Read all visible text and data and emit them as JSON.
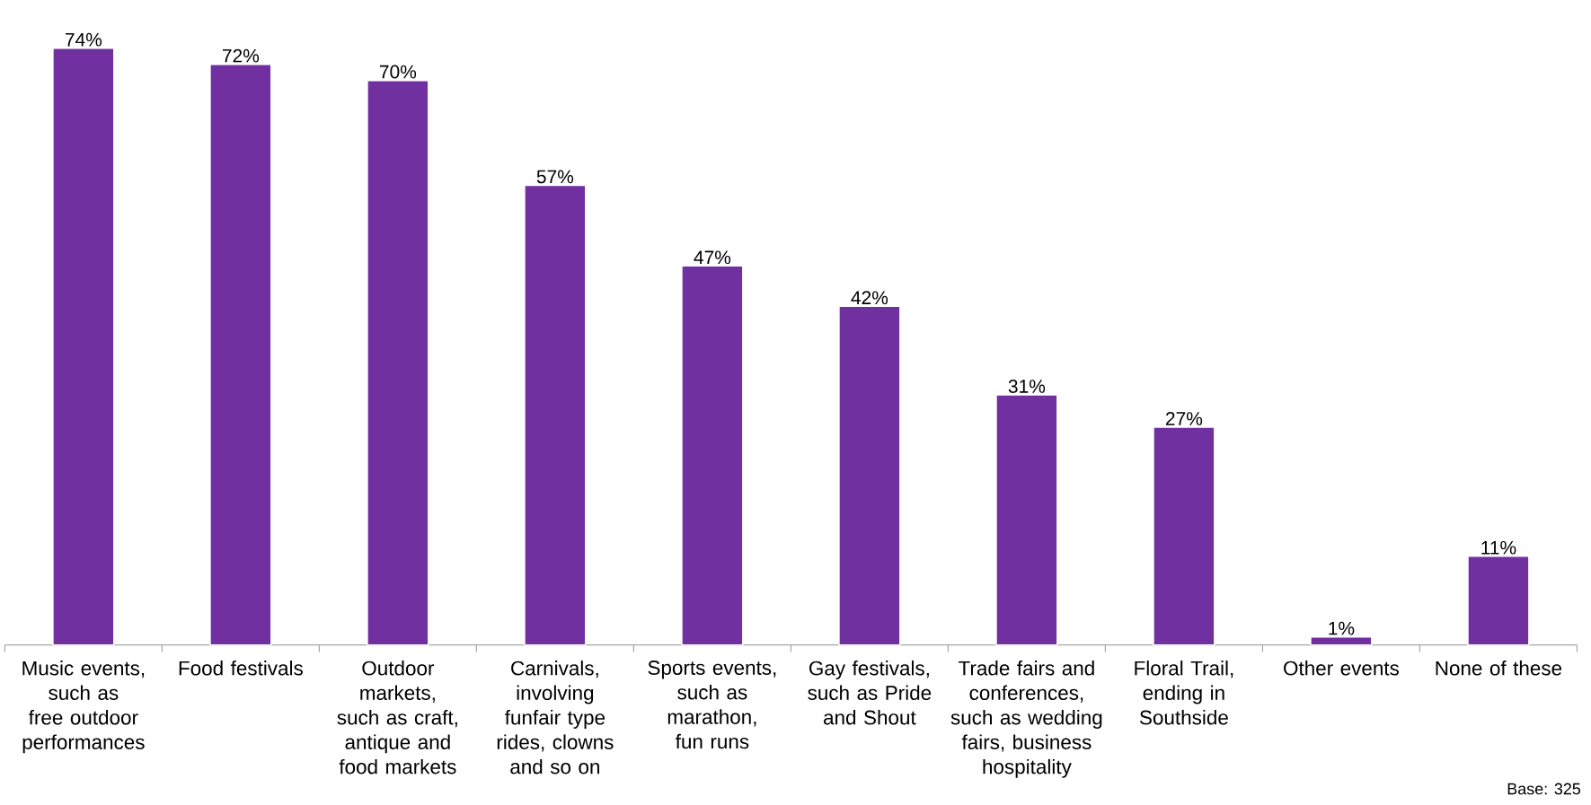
{
  "chart_data": {
    "type": "bar",
    "categories": [
      "Music events, such as free outdoor performances",
      "Food festivals",
      "Outdoor markets, such as craft, antique and food markets",
      "Carnivals, involving funfair type rides, clowns and so on",
      "Sports events, such as marathon, fun runs",
      "Gay festivals, such as Pride and Shout",
      "Trade fairs and conferences, such as wedding fairs, business hospitality",
      "Floral Trail, ending in Southside",
      "Other events",
      "None of these"
    ],
    "values": [
      74,
      72,
      70,
      57,
      47,
      42,
      31,
      27,
      1,
      11
    ],
    "value_labels": [
      "74%",
      "72%",
      "70%",
      "57%",
      "47%",
      "42%",
      "31%",
      "27%",
      "1%",
      "11%"
    ],
    "color": "#7030a0",
    "annotations": [
      "Base: 325"
    ]
  }
}
